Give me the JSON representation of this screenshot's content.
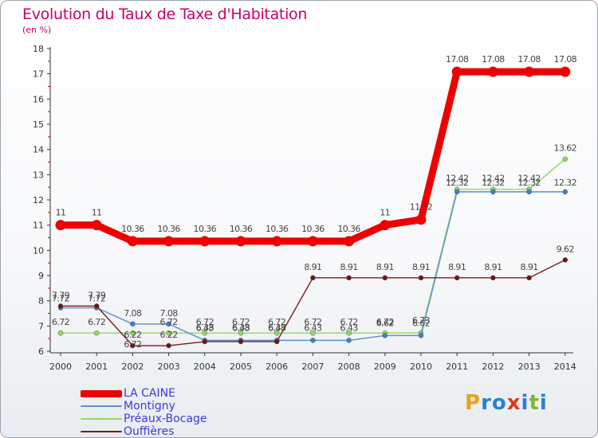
{
  "header": {
    "title": "Evolution du Taux de Taxe d'Habitation",
    "subtitle": "(en %)"
  },
  "brand": {
    "letters": [
      "P",
      "r",
      "o",
      "x",
      "i",
      "t",
      "i"
    ],
    "colors": [
      "#e8a21a",
      "#2a7fd4",
      "#2a7fd4",
      "#d93a1e",
      "#2a7fd4",
      "#7cb82f",
      "#2a7fd4"
    ]
  },
  "chart_data": {
    "type": "line",
    "title": "Evolution du Taux de Taxe d'Habitation",
    "subtitle": "(en %)",
    "xlabel": "",
    "ylabel": "",
    "ylim": [
      6,
      18
    ],
    "yticks": [
      6,
      7,
      8,
      9,
      10,
      11,
      12,
      13,
      14,
      15,
      16,
      17,
      18
    ],
    "grid": false,
    "legend_position": "bottom-left",
    "categories": [
      "2000",
      "2001",
      "2002",
      "2003",
      "2004",
      "2005",
      "2006",
      "2007",
      "2008",
      "2009",
      "2010",
      "2011",
      "2012",
      "2013",
      "2014"
    ],
    "series": [
      {
        "name": "Préaux-Bocage",
        "color": "#8fdc5a",
        "marker": "#8fdc5a",
        "values": [
          6.72,
          6.72,
          6.72,
          6.72,
          6.72,
          6.72,
          6.72,
          6.72,
          6.72,
          6.72,
          6.73,
          12.42,
          12.42,
          12.42,
          13.62
        ],
        "labels": [
          "6.72",
          "6.72",
          "6.72",
          "6.72",
          "6.72",
          "6.72",
          "6.72",
          "6.72",
          "6.72",
          "6.72",
          "6.73",
          "12.42",
          "12.42",
          "12.42",
          "13.62"
        ],
        "label_offsets": [
          -14,
          -14,
          14,
          -14,
          -14,
          -14,
          -14,
          -14,
          -14,
          -14,
          -16,
          -14,
          -14,
          -14,
          -14
        ]
      },
      {
        "name": "Montigny",
        "color": "#5b8fd0",
        "marker": "#3f7fc8",
        "values": [
          7.72,
          7.72,
          7.08,
          7.08,
          6.43,
          6.43,
          6.43,
          6.43,
          6.43,
          6.62,
          6.62,
          12.32,
          12.32,
          12.32,
          12.32
        ],
        "labels": [
          "7.72",
          "7.72",
          "7.08",
          "7.08",
          "6.43",
          "6.43",
          "6.43",
          "6.43",
          "6.43",
          "6.62",
          "6.62",
          "12.32",
          "12.32",
          "12.32",
          "12.32"
        ],
        "label_offsets": [
          -12,
          -12,
          -14,
          -14,
          -16,
          -16,
          -16,
          -16,
          -16,
          -16,
          -16,
          -12,
          -12,
          -12,
          -12
        ]
      },
      {
        "name": "Ouffières",
        "color": "#7a1a1a",
        "marker": "#6e1414",
        "values": [
          7.79,
          7.79,
          6.22,
          6.22,
          6.38,
          6.38,
          6.38,
          8.91,
          8.91,
          8.91,
          8.91,
          8.91,
          8.91,
          8.91,
          9.62
        ],
        "labels": [
          "7.79",
          "7.79",
          "6.22",
          "6.22",
          "6.38",
          "6.38",
          "6.38",
          "8.91",
          "8.91",
          "8.91",
          "8.91",
          "8.91",
          "8.91",
          "8.91",
          "9.62"
        ],
        "label_offsets": [
          -14,
          -14,
          -14,
          -14,
          -18,
          -18,
          -18,
          -14,
          -14,
          -14,
          -14,
          -14,
          -14,
          -14,
          -14
        ]
      },
      {
        "name": "LA CAINE",
        "color": "#ee0000",
        "marker": "#ee0000",
        "values": [
          11,
          11,
          10.36,
          10.36,
          10.36,
          10.36,
          10.36,
          10.36,
          10.36,
          11,
          11.22,
          17.08,
          17.08,
          17.08,
          17.08
        ],
        "labels": [
          "11",
          "11",
          "10.36",
          "10.36",
          "10.36",
          "10.36",
          "10.36",
          "10.36",
          "10.36",
          "11",
          "11.22",
          "17.08",
          "17.08",
          "17.08",
          "17.08"
        ],
        "label_offsets": [
          -16,
          -16,
          -16,
          -16,
          -16,
          -16,
          -16,
          -16,
          -16,
          -16,
          -16,
          -16,
          -16,
          -16,
          -16
        ]
      }
    ],
    "legend_order": [
      "LA CAINE",
      "Montigny",
      "Préaux-Bocage",
      "Ouffières"
    ]
  }
}
